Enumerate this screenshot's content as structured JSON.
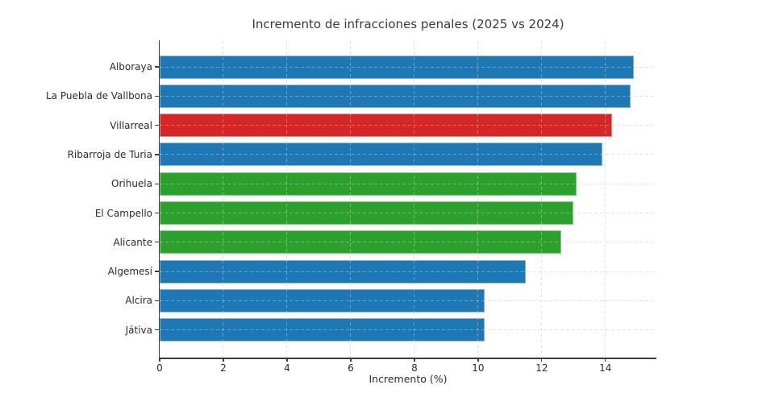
{
  "chart_data": {
    "type": "bar",
    "orientation": "horizontal",
    "title": "Incremento de infracciones penales (2025 vs 2024)",
    "xlabel": "Incremento (%)",
    "ylabel": "",
    "xlim": [
      0,
      15.6
    ],
    "xticks": [
      0,
      2,
      4,
      6,
      8,
      10,
      12,
      14
    ],
    "grid": true,
    "legend": "none",
    "categories": [
      "Alboraya",
      "La Puebla de Vallbona",
      "Villarreal",
      "Ribarroja de Turia",
      "Orihuela",
      "El Campello",
      "Alicante",
      "Algemesí",
      "Alcira",
      "Játiva"
    ],
    "values": [
      14.9,
      14.8,
      14.2,
      13.9,
      13.1,
      13.0,
      12.6,
      11.5,
      10.2,
      10.2
    ],
    "bar_colors": [
      "#1f77b4",
      "#1f77b4",
      "#d62728",
      "#1f77b4",
      "#2ca02c",
      "#2ca02c",
      "#2ca02c",
      "#1f77b4",
      "#1f77b4",
      "#1f77b4"
    ]
  },
  "colors": {
    "bar_blue": "#1f77b4",
    "bar_red": "#d62728",
    "bar_green": "#2ca02c",
    "grid": "#d8d8d8",
    "grid_overlay": "rgba(255,255,255,0.32)",
    "axis": "#3c3c3c",
    "text": "#2b2b2b",
    "background": "#ffffff"
  }
}
